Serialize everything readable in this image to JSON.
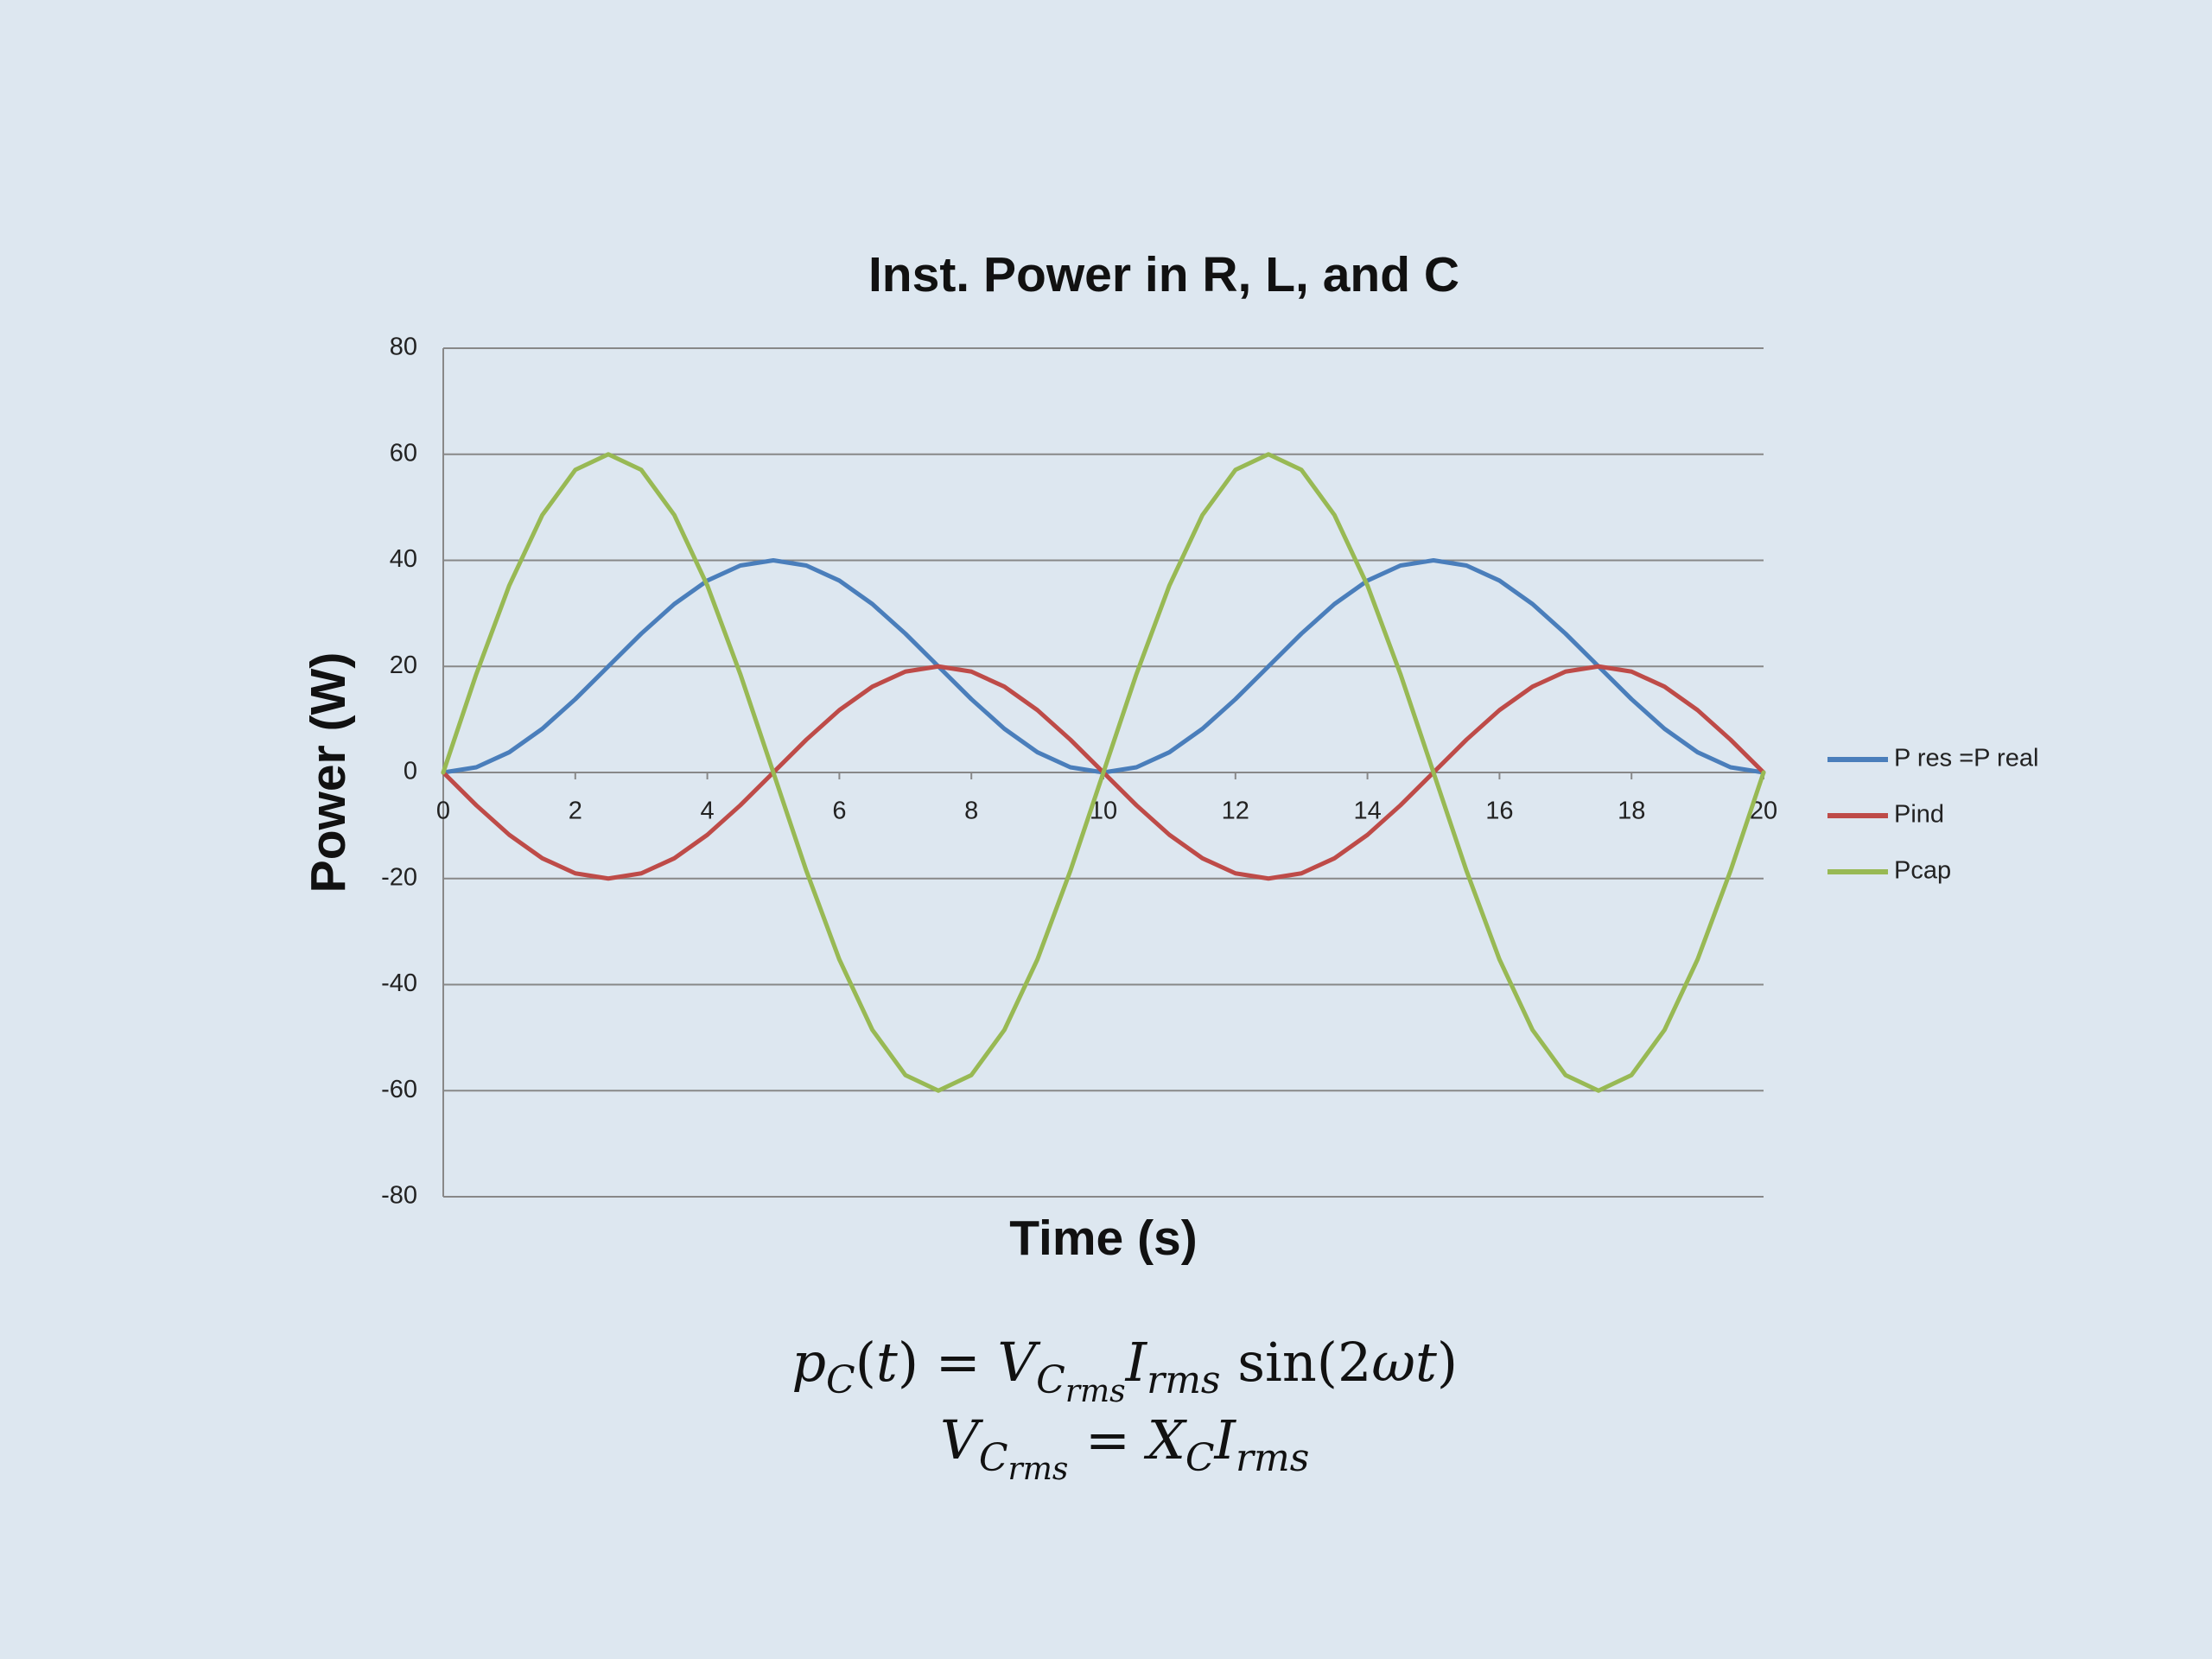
{
  "chart_data": {
    "type": "line",
    "title": "Inst. Power in R, L, and C",
    "x_label": "Time (s)",
    "y_label": "Power (W)",
    "x": [
      0,
      0.5,
      1,
      1.5,
      2,
      2.5,
      3,
      3.5,
      4,
      4.5,
      5,
      5.5,
      6,
      6.5,
      7,
      7.5,
      8,
      8.5,
      9,
      9.5,
      10,
      10.5,
      11,
      11.5,
      12,
      12.5,
      13,
      13.5,
      14,
      14.5,
      15,
      15.5,
      16,
      16.5,
      17,
      17.5,
      18,
      18.5,
      19,
      19.5,
      20
    ],
    "series": [
      {
        "name": "P res =P real",
        "color": "#4a7ebb",
        "values": [
          0,
          0.98,
          3.82,
          8.24,
          13.82,
          20,
          26.18,
          31.76,
          36.18,
          39.02,
          40,
          39.02,
          36.18,
          31.76,
          26.18,
          20,
          13.82,
          8.24,
          3.82,
          0.98,
          0,
          0.98,
          3.82,
          8.24,
          13.82,
          20,
          26.18,
          31.76,
          36.18,
          39.02,
          40,
          39.02,
          36.18,
          31.76,
          26.18,
          20,
          13.82,
          8.24,
          3.82,
          0.98,
          0
        ]
      },
      {
        "name": "Pind",
        "color": "#be4b48",
        "values": [
          0,
          -6.18,
          -11.76,
          -16.18,
          -19.02,
          -20,
          -19.02,
          -16.18,
          -11.76,
          -6.18,
          0,
          6.18,
          11.76,
          16.18,
          19.02,
          20,
          19.02,
          16.18,
          11.76,
          6.18,
          0,
          -6.18,
          -11.76,
          -16.18,
          -19.02,
          -20,
          -19.02,
          -16.18,
          -11.76,
          -6.18,
          0,
          6.18,
          11.76,
          16.18,
          19.02,
          20,
          19.02,
          16.18,
          11.76,
          6.18,
          0
        ]
      },
      {
        "name": "Pcap",
        "color": "#98b954",
        "values": [
          0,
          18.54,
          35.27,
          48.54,
          57.06,
          60,
          57.06,
          48.54,
          35.27,
          18.54,
          0,
          -18.54,
          -35.27,
          -48.54,
          -57.06,
          -60,
          -57.06,
          -48.54,
          -35.27,
          -18.54,
          0,
          18.54,
          35.27,
          48.54,
          57.06,
          60,
          57.06,
          48.54,
          35.27,
          18.54,
          0,
          -18.54,
          -35.27,
          -48.54,
          -57.06,
          -60,
          -57.06,
          -48.54,
          -35.27,
          -18.54,
          0
        ]
      }
    ],
    "xlim": [
      0,
      20
    ],
    "xticks": [
      0,
      2,
      4,
      6,
      8,
      10,
      12,
      14,
      16,
      18,
      20
    ],
    "ylim": [
      -80,
      80
    ],
    "yticks": [
      -80,
      -60,
      -40,
      -20,
      0,
      20,
      40,
      60,
      80
    ],
    "grid": true,
    "legend": "right",
    "formulas": [
      [
        "p",
        "C",
        "(",
        "t",
        ") = ",
        "V",
        "C",
        "rms",
        "I",
        "rms",
        " sin(2",
        "ωt",
        ")"
      ],
      [
        "V",
        "C",
        "rms",
        " = ",
        "X",
        "C",
        "I",
        "rms"
      ]
    ]
  }
}
